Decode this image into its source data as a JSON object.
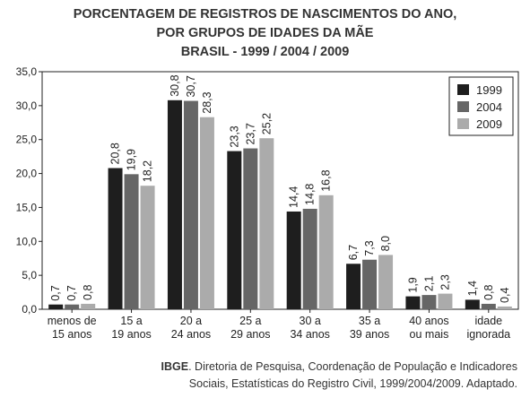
{
  "title_lines": [
    "PORCENTAGEM DE REGISTROS DE NASCIMENTOS DO ANO,",
    "POR GRUPOS DE IDADES DA MÃE",
    "BRASIL - 1999 / 2004 / 2009"
  ],
  "source": {
    "org": "IBGE",
    "line1_rest": ". Diretoria de Pesquisa, Coordenação de População e Indicadores",
    "line2": "Sociais, Estatísticas do Registro Civil, 1999/2004/2009. Adaptado."
  },
  "chart_data": {
    "type": "bar",
    "title": "PORCENTAGEM DE REGISTROS DE NASCIMENTOS DO ANO, POR GRUPOS DE IDADES DA MÃE — BRASIL - 1999 / 2004 / 2009",
    "categories": [
      [
        "menos de",
        "15 anos"
      ],
      [
        "15 a",
        "19 anos"
      ],
      [
        "20 a",
        "24 anos"
      ],
      [
        "25 a",
        "29 anos"
      ],
      [
        "30 a",
        "34 anos"
      ],
      [
        "35 a",
        "39 anos"
      ],
      [
        "40 anos",
        "ou mais"
      ],
      [
        "idade",
        "ignorada"
      ]
    ],
    "series": [
      {
        "name": "1999",
        "color": "#1e1e1e",
        "values": [
          0.7,
          20.8,
          30.8,
          23.3,
          14.4,
          6.7,
          1.9,
          1.4
        ],
        "labels": [
          "0,7",
          "20,8",
          "30,8",
          "23,3",
          "14,4",
          "6,7",
          "1,9",
          "1,4"
        ]
      },
      {
        "name": "2004",
        "color": "#666666",
        "values": [
          0.7,
          19.9,
          30.7,
          23.7,
          14.8,
          7.3,
          2.1,
          0.8
        ],
        "labels": [
          "0,7",
          "19,9",
          "30,7",
          "23,7",
          "14,8",
          "7,3",
          "2,1",
          "0,8"
        ]
      },
      {
        "name": "2009",
        "color": "#ababab",
        "values": [
          0.8,
          18.2,
          28.3,
          25.2,
          16.8,
          8.0,
          2.3,
          0.4
        ],
        "labels": [
          "0,8",
          "18,2",
          "28,3",
          "25,2",
          "16,8",
          "8,0",
          "2,3",
          "0,4"
        ]
      }
    ],
    "ylim": [
      0,
      35
    ],
    "yticks": [
      0,
      5,
      10,
      15,
      20,
      25,
      30,
      35
    ],
    "ytick_labels": [
      "0,0",
      "5,0",
      "10,0",
      "15,0",
      "20,0",
      "25,0",
      "30,0",
      "35,0"
    ],
    "xlabel": "",
    "ylabel": "",
    "grid": false,
    "legend": "top-right"
  }
}
